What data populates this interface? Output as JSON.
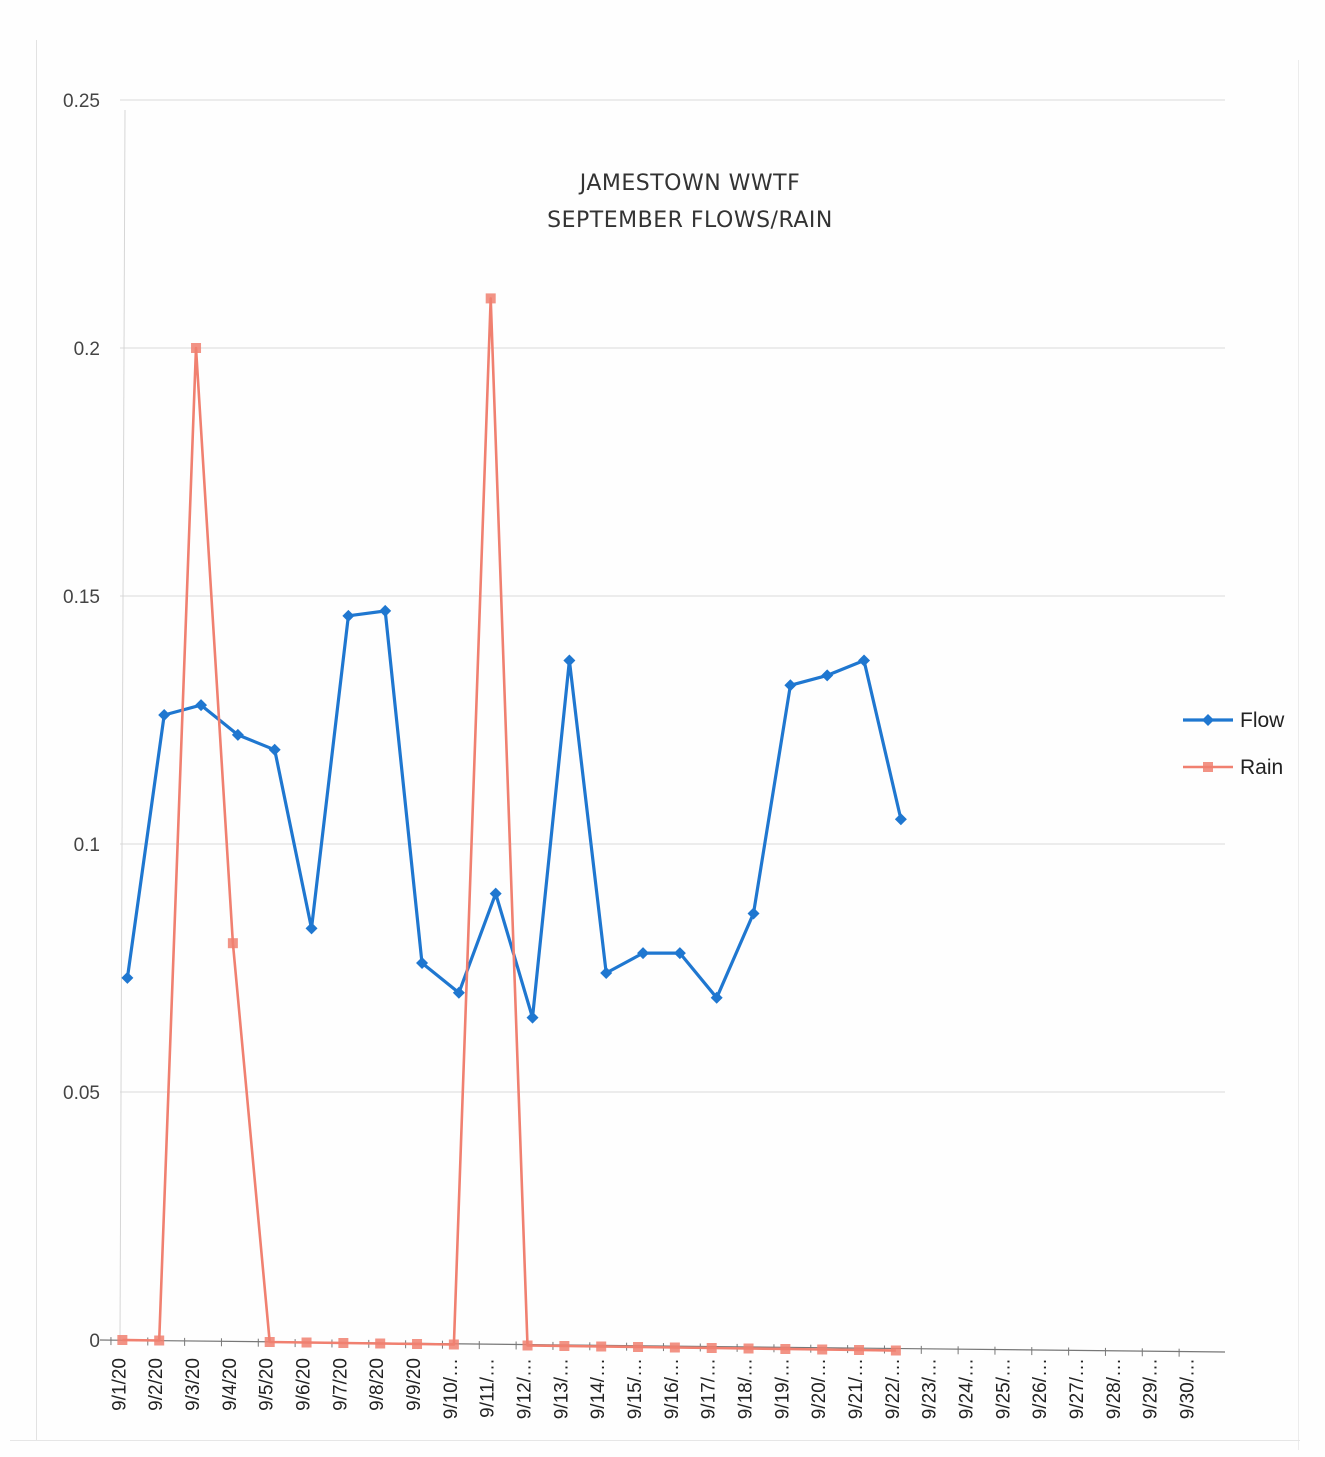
{
  "chart_data": {
    "type": "line",
    "title": "JAMESTOWN WWTF",
    "subtitle": "SEPTEMBER FLOWS/RAIN",
    "xlabel": "",
    "ylabel": "",
    "ylim": [
      0,
      0.25
    ],
    "yticks": [
      "0",
      "0.05",
      "0.1",
      "0.15",
      "0.2",
      "0.25"
    ],
    "ytick_values": [
      0,
      0.05,
      0.1,
      0.15,
      0.2,
      0.25
    ],
    "grid": true,
    "legend_position": "right",
    "categories": [
      "9/1/20",
      "9/2/20",
      "9/3/20",
      "9/4/20",
      "9/5/20",
      "9/6/20",
      "9/7/20",
      "9/8/20",
      "9/9/20",
      "9/10/…",
      "9/11/…",
      "9/12/…",
      "9/13/…",
      "9/14/…",
      "9/15/…",
      "9/16/…",
      "9/17/…",
      "9/18/…",
      "9/19/…",
      "9/20/…",
      "9/21/…",
      "9/22/…",
      "9/23/…",
      "9/24/…",
      "9/25/…",
      "9/26/…",
      "9/27/…",
      "9/28/…",
      "9/29/…",
      "9/30/…"
    ],
    "series": [
      {
        "name": "Flow",
        "color": "#1f77d0",
        "marker": "diamond",
        "values": [
          0.073,
          0.126,
          0.128,
          0.122,
          0.119,
          0.083,
          0.146,
          0.147,
          0.076,
          0.07,
          0.09,
          0.065,
          0.137,
          0.074,
          0.078,
          0.078,
          0.069,
          0.086,
          0.132,
          0.134,
          0.137,
          0.105,
          null,
          null,
          null,
          null,
          null,
          null,
          null,
          null
        ]
      },
      {
        "name": "Rain",
        "color": "#f08070",
        "marker": "square",
        "values": [
          0,
          0,
          0.2,
          0.08,
          0,
          0,
          0,
          0,
          0,
          0,
          0.21,
          0,
          0,
          0,
          0,
          0,
          0,
          0,
          0,
          0,
          0,
          0,
          null,
          null,
          null,
          null,
          null,
          null,
          null,
          null
        ]
      }
    ]
  }
}
